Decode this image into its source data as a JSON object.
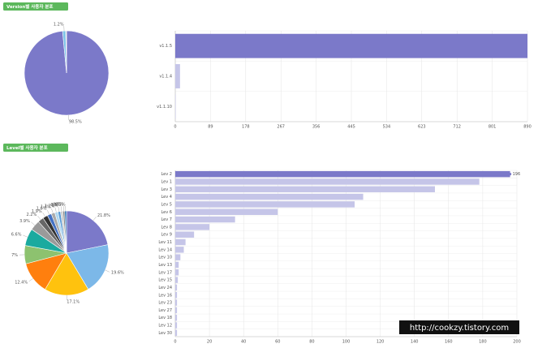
{
  "chart_data": [
    {
      "type": "pie",
      "title": "Version별 사용자 분포",
      "values": [
        98.5,
        1.2,
        0.3
      ],
      "value_labels": [
        "98.5%",
        "1.2%",
        null
      ],
      "colors": [
        "#7b79c9",
        "#7cc3e8",
        "#cccccc"
      ]
    },
    {
      "type": "bar",
      "orientation": "horizontal",
      "categories": [
        "v1.1.5",
        "v1.1.4",
        "v1.1.10"
      ],
      "values": [
        890,
        12,
        1
      ],
      "colors": [
        "#7b79c9",
        "#c5c5e8",
        "#c5c5e8"
      ],
      "xlim": [
        0,
        890
      ],
      "xticks": [
        0,
        89,
        178,
        267,
        356,
        445,
        534,
        623,
        712,
        801,
        890
      ],
      "grid": true
    },
    {
      "type": "pie",
      "title": "Level별 사용자 분포",
      "values": [
        21.8,
        19.6,
        17.1,
        12.4,
        7,
        6.6,
        3.9,
        2.2,
        1.9,
        1.6,
        1.4,
        1.2,
        1.0,
        0.9,
        0.7,
        0.7
      ],
      "value_labels": [
        "21.8%",
        "19.6%",
        "17.1%",
        "12.4%",
        "7%",
        "6.6%",
        "3.9%",
        "2.2%",
        "1.9%",
        "1.6%",
        "1.4%",
        "1.2%",
        "1%",
        "0.9%",
        "0.7%",
        "0.7%"
      ],
      "colors": [
        "#7b79c9",
        "#7cb8e8",
        "#ffc20e",
        "#ff7f0e",
        "#8dc26f",
        "#1aaa9f",
        "#9a9a9a",
        "#666666",
        "#333333",
        "#4472c4",
        "#aaaaaa",
        "#b0d8f0",
        "#5b9bd5",
        "#cccccc",
        "#888888",
        "#2e75b6"
      ]
    },
    {
      "type": "bar",
      "orientation": "horizontal",
      "categories": [
        "Lev 2",
        "Lev 1",
        "Lev 3",
        "Lev 4",
        "Lev 5",
        "Lev 6",
        "Lev 7",
        "Lev 8",
        "Lev 9",
        "Lev 11",
        "Lev 14",
        "Lev 10",
        "Lev 13",
        "Lev 17",
        "Lev 15",
        "Lev 24",
        "Lev 16",
        "Lev 23",
        "Lev 27",
        "Lev 18",
        "Lev 12",
        "Lev 30"
      ],
      "values": [
        196,
        178,
        152,
        110,
        105,
        60,
        35,
        20,
        11,
        6,
        5,
        3,
        2,
        2,
        1.5,
        1,
        1,
        1,
        1,
        1,
        1,
        1
      ],
      "colors": [
        "#7b79c9",
        "#c5c5e8",
        "#c5c5e8",
        "#c5c5e8",
        "#c5c5e8",
        "#c5c5e8",
        "#c5c5e8",
        "#c5c5e8",
        "#c5c5e8",
        "#c5c5e8",
        "#c5c5e8",
        "#c5c5e8",
        "#c5c5e8",
        "#c5c5e8",
        "#c5c5e8",
        "#c5c5e8",
        "#c5c5e8",
        "#c5c5e8",
        "#c5c5e8",
        "#c5c5e8",
        "#c5c5e8",
        "#c5c5e8"
      ],
      "data_label_first": true,
      "xlim": [
        0,
        200
      ],
      "xticks": [
        0,
        20,
        40,
        60,
        80,
        100,
        120,
        140,
        160,
        180,
        200
      ],
      "grid": true
    }
  ],
  "watermark": "http://cookzy.tistory.com"
}
